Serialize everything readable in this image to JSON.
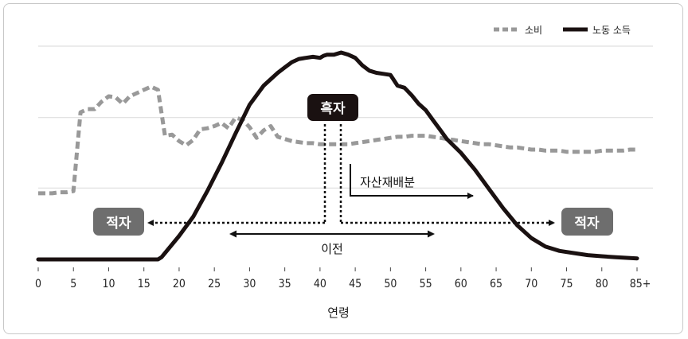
{
  "chart_data": {
    "type": "line",
    "title": "",
    "xlabel": "연령",
    "ylabel": "",
    "xlim": [
      0,
      85
    ],
    "ylim": [
      0,
      100
    ],
    "grid": "horizontal",
    "legend_position": "top-right",
    "x_ticks": [
      0,
      5,
      10,
      15,
      20,
      25,
      30,
      35,
      40,
      45,
      50,
      55,
      60,
      65,
      70,
      75,
      80,
      85
    ],
    "x_tick_labels": [
      "0",
      "5",
      "10",
      "15",
      "20",
      "25",
      "30",
      "35",
      "40",
      "45",
      "50",
      "55",
      "60",
      "65",
      "70",
      "75",
      "80",
      "85+"
    ],
    "series": [
      {
        "name": "소비",
        "style": "dashed",
        "color": "#999999",
        "x": [
          0,
          1,
          2,
          3,
          4,
          5,
          6,
          7,
          8,
          9,
          10,
          11,
          12,
          13,
          14,
          15,
          16,
          17,
          18,
          19,
          20,
          21,
          22,
          23,
          24,
          25,
          26,
          27,
          28,
          29,
          30,
          31,
          32,
          33,
          34,
          35,
          36,
          37,
          38,
          39,
          40,
          41,
          42,
          43,
          44,
          45,
          46,
          47,
          48,
          49,
          50,
          51,
          52,
          53,
          54,
          55,
          56,
          57,
          58,
          59,
          60,
          61,
          62,
          63,
          64,
          65,
          66,
          67,
          68,
          69,
          70,
          71,
          72,
          73,
          74,
          75,
          76,
          77,
          78,
          79,
          80,
          81,
          82,
          83,
          84,
          85
        ],
        "values": [
          31.0,
          31.0,
          31.0,
          31.5,
          31.5,
          32.0,
          69.0,
          70.5,
          70.5,
          74.0,
          76.5,
          76.0,
          73.0,
          76.5,
          78.0,
          79.5,
          81.0,
          79.5,
          58.0,
          58.5,
          55.5,
          53.5,
          56.0,
          61.0,
          61.5,
          62.5,
          64.0,
          61.5,
          66.5,
          65.5,
          62.0,
          57.0,
          60.5,
          62.5,
          57.5,
          56.5,
          55.5,
          55.0,
          54.5,
          54.5,
          54.0,
          54.0,
          54.0,
          54.0,
          54.0,
          54.5,
          55.0,
          55.5,
          56.0,
          56.5,
          57.0,
          57.5,
          57.5,
          58.0,
          58.0,
          58.0,
          57.5,
          57.0,
          56.5,
          56.0,
          55.5,
          55.0,
          54.5,
          54.0,
          54.0,
          53.5,
          53.0,
          52.5,
          52.5,
          52.0,
          51.5,
          51.5,
          51.0,
          51.0,
          51.0,
          50.5,
          50.5,
          50.5,
          50.5,
          50.5,
          51.0,
          51.0,
          51.0,
          51.0,
          51.5,
          51.5
        ]
      },
      {
        "name": "노동 소득",
        "style": "solid",
        "color": "#1a1111",
        "x": [
          0,
          5,
          10,
          15,
          17,
          17.5,
          18,
          20,
          22,
          24,
          26,
          28,
          30,
          32,
          34,
          35,
          36,
          37,
          38,
          39,
          40,
          40.5,
          41,
          42,
          43,
          44,
          45,
          46,
          47,
          48,
          49,
          50,
          51,
          52,
          53,
          54,
          55,
          56,
          57,
          58,
          60,
          62,
          64,
          66,
          68,
          70,
          72,
          74,
          76,
          78,
          80,
          82,
          85
        ],
        "values": [
          0,
          0,
          0,
          0,
          0,
          1.0,
          3.0,
          11.0,
          20.0,
          32.0,
          45.0,
          59.0,
          72.5,
          81.5,
          87.5,
          90.0,
          92.5,
          94.0,
          94.5,
          95.0,
          94.5,
          95.5,
          96.0,
          96.0,
          97.0,
          96.0,
          94.5,
          91.0,
          88.5,
          87.5,
          87.0,
          86.5,
          81.5,
          80.5,
          77.0,
          73.0,
          70.0,
          65.5,
          61.0,
          56.5,
          50.0,
          42.0,
          33.0,
          24.0,
          16.0,
          10.0,
          6.0,
          4.0,
          3.0,
          2.0,
          1.5,
          1.0,
          0.5
        ]
      }
    ],
    "annotations": {
      "surplus_label": "흑자",
      "deficit_left_label": "적자",
      "deficit_right_label": "적자",
      "asset_realloc_label": "자산재배분",
      "transfer_label": "이전"
    }
  }
}
